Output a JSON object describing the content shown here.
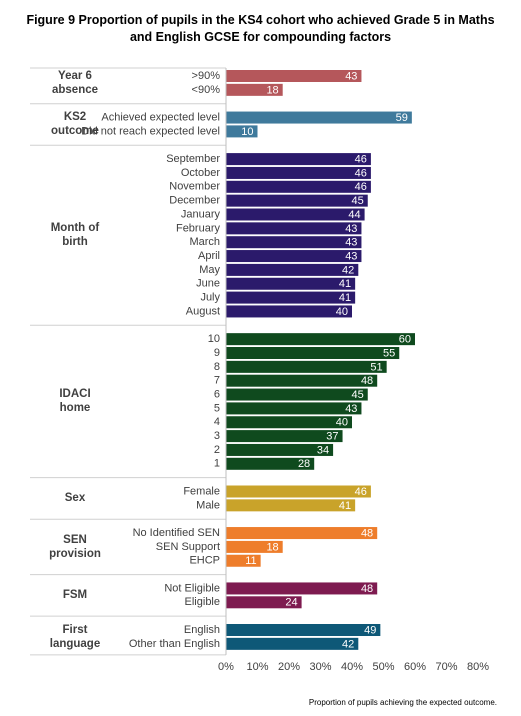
{
  "chart_data": {
    "type": "bar",
    "orientation": "horizontal",
    "title": "Figure 9 Proportion of pupils in the KS4 cohort who achieved Grade 5 in Maths and English GCSE for compounding factors",
    "footnote": "Proportion of pupils achieving the expected outcome.",
    "xlim": [
      0,
      80
    ],
    "xticks": [
      {
        "value": 0,
        "label": "0%"
      },
      {
        "value": 10,
        "label": "10%"
      },
      {
        "value": 20,
        "label": "20%"
      },
      {
        "value": 30,
        "label": "30%"
      },
      {
        "value": 40,
        "label": "40%"
      },
      {
        "value": 50,
        "label": "50%"
      },
      {
        "value": 60,
        "label": "60%"
      },
      {
        "value": 70,
        "label": "70%"
      },
      {
        "value": 80,
        "label": "80%"
      }
    ],
    "groups": [
      {
        "name": "Year 6 absence",
        "color": "#b5575b",
        "categories": [
          ">90%",
          "<90%"
        ],
        "values": [
          43,
          18
        ]
      },
      {
        "name": "KS2 outcome",
        "color": "#3f7a9c",
        "categories": [
          "Achieved expected level",
          "Did not reach expected level"
        ],
        "values": [
          59,
          10
        ]
      },
      {
        "name": "Month of birth",
        "color": "#2b1a6b",
        "categories": [
          "September",
          "October",
          "November",
          "December",
          "January",
          "February",
          "March",
          "April",
          "May",
          "June",
          "July",
          "August"
        ],
        "values": [
          46,
          46,
          46,
          45,
          44,
          43,
          43,
          43,
          42,
          41,
          41,
          40
        ]
      },
      {
        "name": "IDACI home",
        "color": "#0f4a1e",
        "categories": [
          "10",
          "9",
          "8",
          "7",
          "6",
          "5",
          "4",
          "3",
          "2",
          "1"
        ],
        "values": [
          60,
          55,
          51,
          48,
          45,
          43,
          40,
          37,
          34,
          28
        ]
      },
      {
        "name": "Sex",
        "color": "#c9a32a",
        "categories": [
          "Female",
          "Male"
        ],
        "values": [
          46,
          41
        ]
      },
      {
        "name": "SEN provision",
        "color": "#ee7d2b",
        "categories": [
          "No Identified SEN",
          "SEN Support",
          "EHCP"
        ],
        "values": [
          48,
          18,
          11
        ]
      },
      {
        "name": "FSM",
        "color": "#7e1b50",
        "categories": [
          "Not Eligible",
          "Eligible"
        ],
        "values": [
          48,
          24
        ]
      },
      {
        "name": "First language",
        "color": "#0e5877",
        "categories": [
          "English",
          "Other than English"
        ],
        "values": [
          49,
          42
        ]
      }
    ]
  }
}
